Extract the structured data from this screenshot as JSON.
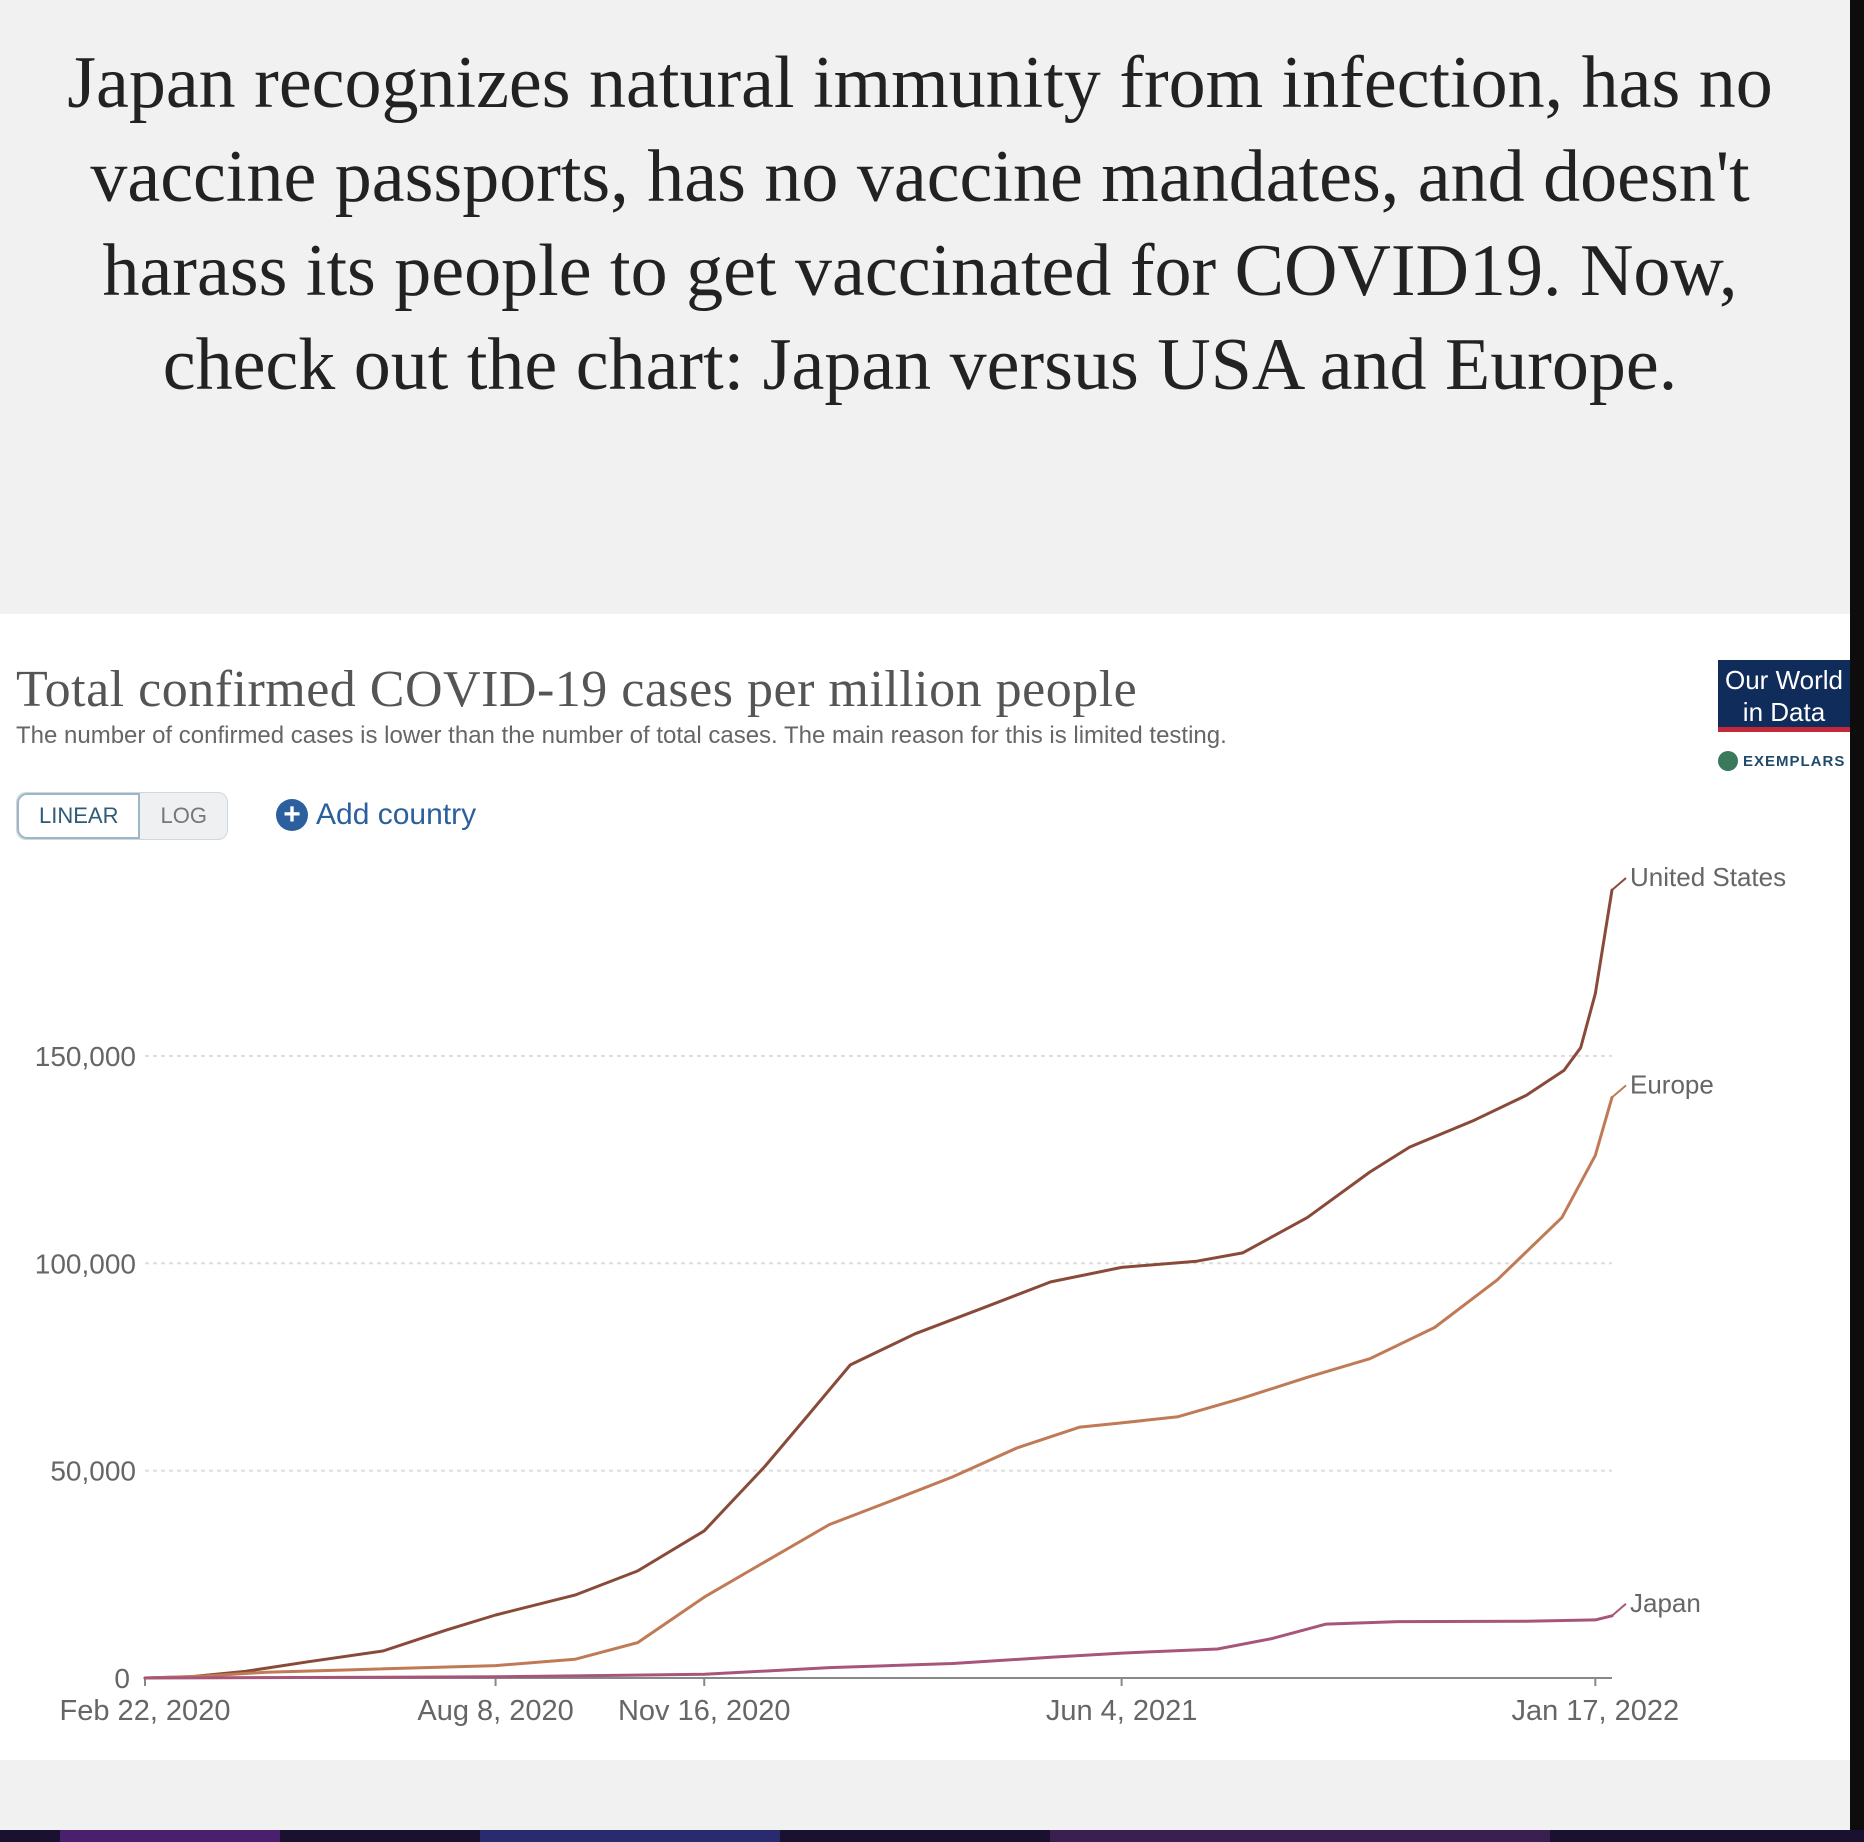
{
  "caption": "Japan recognizes natural immunity from infection, has no vaccine passports, has no vaccine mandates, and doesn't harass its people to get vaccinated for COVID19. Now, check out the chart: Japan versus USA and Europe.",
  "logo": {
    "line1": "Our World",
    "line2": "in Data",
    "exemplar": "EXEMPLARS"
  },
  "controls": {
    "linear_label": "LINEAR",
    "log_label": "LOG",
    "add_country_label": "Add country"
  },
  "colors": {
    "united_states": "#8a4a3a",
    "europe": "#c07a55",
    "japan": "#a8557a",
    "axis": "#888888",
    "grid": "#dddddd"
  },
  "chart_data": {
    "type": "line",
    "title": "Total confirmed COVID-19 cases per million people",
    "subtitle": "The number of confirmed cases is lower than the number of total cases. The main reason for this is limited testing.",
    "scale": "linear",
    "x_range": [
      "2020-02-22",
      "2022-01-25"
    ],
    "x_ticks": [
      {
        "date": "2020-02-22",
        "label": "Feb 22, 2020"
      },
      {
        "date": "2020-08-08",
        "label": "Aug 8, 2020"
      },
      {
        "date": "2020-11-16",
        "label": "Nov 16, 2020"
      },
      {
        "date": "2021-06-04",
        "label": "Jun 4, 2021"
      },
      {
        "date": "2022-01-17",
        "label": "Jan 17, 2022"
      }
    ],
    "ylim": [
      0,
      190000
    ],
    "y_ticks": [
      {
        "value": 0,
        "label": "0"
      },
      {
        "value": 50000,
        "label": "50,000"
      },
      {
        "value": 100000,
        "label": "100,000"
      },
      {
        "value": 150000,
        "label": "150,000"
      }
    ],
    "grid": true,
    "series": [
      {
        "name": "United States",
        "color_key": "united_states",
        "points": [
          [
            "2020-02-22",
            0
          ],
          [
            "2020-03-15",
            300
          ],
          [
            "2020-04-10",
            1600
          ],
          [
            "2020-05-10",
            3900
          ],
          [
            "2020-06-15",
            6500
          ],
          [
            "2020-07-15",
            11500
          ],
          [
            "2020-08-08",
            15200
          ],
          [
            "2020-09-15",
            20000
          ],
          [
            "2020-10-15",
            25800
          ],
          [
            "2020-11-16",
            35500
          ],
          [
            "2020-12-15",
            51000
          ],
          [
            "2021-01-05",
            63500
          ],
          [
            "2021-01-25",
            75500
          ],
          [
            "2021-02-25",
            83000
          ],
          [
            "2021-03-31",
            89500
          ],
          [
            "2021-05-01",
            95500
          ],
          [
            "2021-06-04",
            99000
          ],
          [
            "2021-07-10",
            100500
          ],
          [
            "2021-08-01",
            102500
          ],
          [
            "2021-09-01",
            111000
          ],
          [
            "2021-10-01",
            122000
          ],
          [
            "2021-10-20",
            128000
          ],
          [
            "2021-11-20",
            134500
          ],
          [
            "2021-12-15",
            140500
          ],
          [
            "2022-01-02",
            146500
          ],
          [
            "2022-01-10",
            152000
          ],
          [
            "2022-01-17",
            165000
          ],
          [
            "2022-01-25",
            190000
          ]
        ]
      },
      {
        "name": "Europe",
        "color_key": "europe",
        "points": [
          [
            "2020-02-22",
            0
          ],
          [
            "2020-03-20",
            400
          ],
          [
            "2020-04-20",
            1400
          ],
          [
            "2020-06-01",
            2000
          ],
          [
            "2020-08-08",
            3000
          ],
          [
            "2020-09-15",
            4500
          ],
          [
            "2020-10-15",
            8500
          ],
          [
            "2020-11-16",
            19500
          ],
          [
            "2020-12-15",
            28000
          ],
          [
            "2021-01-15",
            37000
          ],
          [
            "2021-02-15",
            43000
          ],
          [
            "2021-03-15",
            48500
          ],
          [
            "2021-04-15",
            55500
          ],
          [
            "2021-05-15",
            60500
          ],
          [
            "2021-06-04",
            61500
          ],
          [
            "2021-07-01",
            63000
          ],
          [
            "2021-08-01",
            67500
          ],
          [
            "2021-09-01",
            72500
          ],
          [
            "2021-10-01",
            77000
          ],
          [
            "2021-11-01",
            84500
          ],
          [
            "2021-12-01",
            96000
          ],
          [
            "2022-01-01",
            111000
          ],
          [
            "2022-01-17",
            126000
          ],
          [
            "2022-01-25",
            140000
          ]
        ]
      },
      {
        "name": "Japan",
        "color_key": "japan",
        "points": [
          [
            "2020-02-22",
            0
          ],
          [
            "2020-08-08",
            300
          ],
          [
            "2020-11-16",
            900
          ],
          [
            "2021-01-15",
            2500
          ],
          [
            "2021-03-15",
            3500
          ],
          [
            "2021-05-01",
            5000
          ],
          [
            "2021-06-04",
            6000
          ],
          [
            "2021-07-20",
            7000
          ],
          [
            "2021-08-15",
            9500
          ],
          [
            "2021-09-10",
            13000
          ],
          [
            "2021-10-15",
            13600
          ],
          [
            "2021-12-15",
            13700
          ],
          [
            "2022-01-17",
            14000
          ],
          [
            "2022-01-25",
            15000
          ]
        ]
      }
    ]
  }
}
